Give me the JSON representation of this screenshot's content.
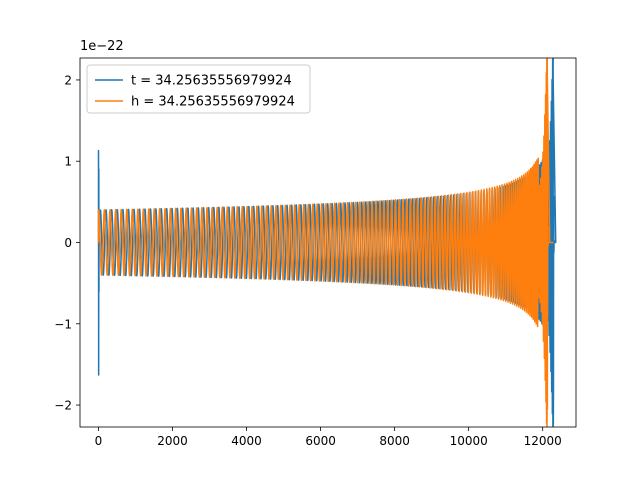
{
  "chart_data": {
    "type": "line",
    "title": "",
    "xlabel": "",
    "ylabel": "",
    "y_scale_label": "1e−22",
    "xlim": [
      -500,
      12900
    ],
    "ylim": [
      -2.27,
      2.27
    ],
    "x_ticks": [
      0,
      2000,
      4000,
      6000,
      8000,
      10000,
      12000
    ],
    "x_tick_labels": [
      "0",
      "2000",
      "4000",
      "6000",
      "8000",
      "10000",
      "12000"
    ],
    "y_ticks": [
      -2,
      -1,
      0,
      1,
      2
    ],
    "y_tick_labels": [
      "−2",
      "−1",
      "0",
      "1",
      "2"
    ],
    "grid": false,
    "legend_position": "upper-left",
    "series": [
      {
        "name": "t = 34.25635556979924",
        "color": "#1f77b4",
        "description_values": {
          "start_spike": {
            "x": 0,
            "y_max": 1.13,
            "y_min": -1.63
          },
          "inspiral_start": {
            "x": 0,
            "amplitude": 0.4
          },
          "merger": {
            "x": 12280,
            "y_max": 2.08,
            "y_min": -2.05
          },
          "end": {
            "x": 12290,
            "amplitude": 0.0
          }
        }
      },
      {
        "name": "h = 34.25635556979924",
        "color": "#ff7f0e",
        "description_values": {
          "inspiral_start": {
            "x": 0,
            "amplitude": 0.4
          },
          "merger": {
            "x": 12130,
            "y_max": 2.07,
            "y_min": -2.05
          },
          "end": {
            "x": 12300,
            "amplitude": 0.0
          }
        }
      }
    ]
  }
}
